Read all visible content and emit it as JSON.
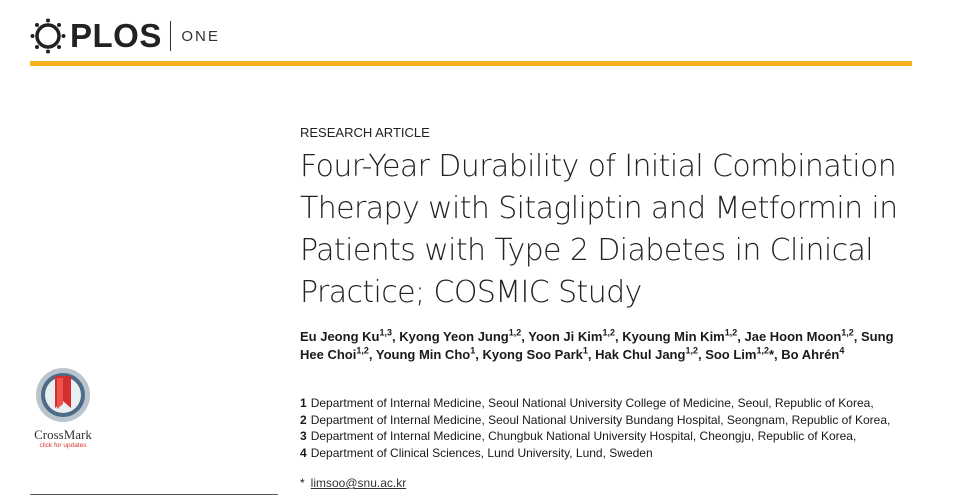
{
  "header": {
    "logo": "PLOS",
    "journal": "ONE"
  },
  "article_type": "RESEARCH ARTICLE",
  "title_lines": [
    "Four-Year Durability of Initial Combination",
    "Therapy with Sitagliptin and Metformin in",
    "Patients with Type 2 Diabetes in Clinical",
    "Practice; COSMIC Study"
  ],
  "authors": [
    {
      "name": "Eu Jeong Ku",
      "sup": "1,3",
      "separator": ", "
    },
    {
      "name": "Kyong Yeon Jung",
      "sup": "1,2",
      "separator": ", "
    },
    {
      "name": "Yoon Ji Kim",
      "sup": "1,2",
      "separator": ", "
    },
    {
      "name": "Kyoung Min Kim",
      "sup": "1,2",
      "separator": ", "
    },
    {
      "name": "Jae Hoon Moon",
      "sup": "1,2",
      "separator": ", "
    },
    {
      "name": "Sung Hee Choi",
      "sup": "1,2",
      "separator": ", "
    },
    {
      "name": "Young Min Cho",
      "sup": "1",
      "separator": ", "
    },
    {
      "name": "Kyong Soo Park",
      "sup": "1",
      "separator": ", "
    },
    {
      "name": "Hak Chul Jang",
      "sup": "1,2",
      "separator": ", "
    },
    {
      "name": "Soo Lim",
      "sup": "1,2",
      "mark": "*",
      "separator": ", "
    },
    {
      "name": "Bo Ahrén",
      "sup": "4"
    }
  ],
  "affiliations": [
    {
      "number": "1",
      "text": "Department of Internal Medicine, Seoul National University College of Medicine, Seoul, Republic of Korea,"
    },
    {
      "number": "2",
      "text": "Department of Internal Medicine, Seoul National University Bundang Hospital, Seongnam, Republic of Korea,"
    },
    {
      "number": "3",
      "text": "Department of Internal Medicine, Chungbuk National University Hospital, Cheongju, Republic of Korea,"
    },
    {
      "number": "4",
      "text": "Department of Clinical Sciences, Lund University, Lund, Sweden"
    }
  ],
  "correspondence": {
    "symbol": "*",
    "email": "limsoo@snu.ac.kr"
  },
  "crossmark": {
    "label": "CrossMark",
    "caption": "click for updates"
  }
}
